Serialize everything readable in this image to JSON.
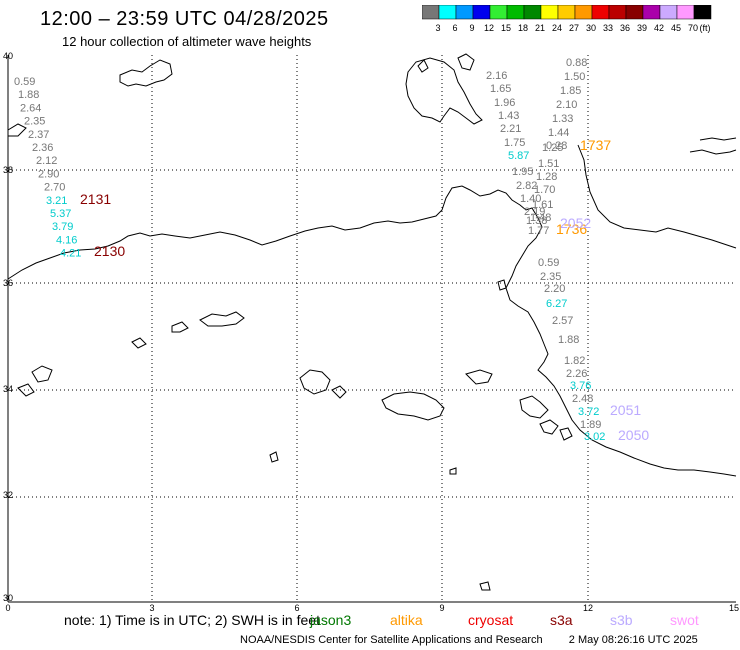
{
  "header": {
    "title": "12:00 – 23:59 UTC 04/28/2025",
    "subtitle": "12 hour collection of altimeter wave heights"
  },
  "legend": {
    "unit": "(ft)",
    "bins": [
      {
        "label": "3",
        "color": "#777777"
      },
      {
        "label": "6",
        "color": "#00ffff"
      },
      {
        "label": "9",
        "color": "#0099ff"
      },
      {
        "label": "12",
        "color": "#0000ee"
      },
      {
        "label": "15",
        "color": "#33ee33"
      },
      {
        "label": "18",
        "color": "#00bb00"
      },
      {
        "label": "21",
        "color": "#008800"
      },
      {
        "label": "24",
        "color": "#ffff00"
      },
      {
        "label": "27",
        "color": "#ffcc00"
      },
      {
        "label": "30",
        "color": "#ff9900"
      },
      {
        "label": "33",
        "color": "#ee0000"
      },
      {
        "label": "36",
        "color": "#bb0000"
      },
      {
        "label": "39",
        "color": "#880000"
      },
      {
        "label": "42",
        "color": "#aa00aa"
      },
      {
        "label": "45",
        "color": "#ccaaff"
      },
      {
        "label": "70",
        "color": "#ff99ff"
      },
      {
        "label": "",
        "color": "#000000"
      }
    ]
  },
  "axes": {
    "y_labels": [
      "40",
      "38",
      "36",
      "34",
      "32",
      "30"
    ],
    "x_labels": [
      "0",
      "3",
      "6",
      "9",
      "12",
      "15"
    ]
  },
  "colors": {
    "gray": "#777777",
    "cyan": "#00cccc",
    "orange": "#ff9900",
    "darkred": "#880000",
    "lavender": "#bbaaff",
    "coast": "#000000",
    "grid": "#000000"
  },
  "track_a": [
    "0.59",
    "1.88",
    "2.64",
    "2.35",
    "2.37",
    "2.36",
    "2.12",
    "2.90",
    "2.70",
    "3.21",
    "5.37",
    "3.79",
    "4.16",
    "4.21"
  ],
  "track_a_colors": [
    "gray",
    "gray",
    "gray",
    "gray",
    "gray",
    "gray",
    "gray",
    "gray",
    "gray",
    "cyan",
    "cyan",
    "cyan",
    "cyan",
    "cyan"
  ],
  "track_b": [
    "2.16",
    "1.65",
    "1.96",
    "1.43",
    "2.21",
    "1.75",
    "5.87",
    "1.95",
    "2.82",
    "1.40",
    "2.19",
    "1.38",
    "1.77"
  ],
  "track_b_colors": [
    "gray",
    "gray",
    "gray",
    "gray",
    "gray",
    "gray",
    "cyan",
    "gray",
    "gray",
    "gray",
    "gray",
    "gray",
    "gray"
  ],
  "track_c": [
    "0.88",
    "1.50",
    "1.85",
    "2.10",
    "1.33",
    "1.44",
    "0.28",
    "1.25",
    "1.51",
    "1.28",
    "1.70",
    "1.61",
    "1.48"
  ],
  "track_d": [
    "0.59",
    "2.35",
    "2.20",
    "6.27",
    "2.57",
    "1.88",
    "1.82",
    "2.26",
    "3.76",
    "2.48",
    "3.72",
    "1.89",
    "3.02"
  ],
  "track_d_colors": [
    "gray",
    "gray",
    "gray",
    "cyan",
    "gray",
    "gray",
    "gray",
    "gray",
    "cyan",
    "gray",
    "cyan",
    "gray",
    "cyan"
  ],
  "pass_labels": [
    {
      "text": "2131",
      "color": "darkred"
    },
    {
      "text": "2130",
      "color": "darkred"
    },
    {
      "text": "1737",
      "color": "orange"
    },
    {
      "text": "1736",
      "color": "orange"
    },
    {
      "text": "2052",
      "color": "lavender"
    },
    {
      "text": "2051",
      "color": "lavender"
    },
    {
      "text": "2050",
      "color": "lavender"
    }
  ],
  "footer": {
    "note": "note:  1) Time is in UTC;  2) SWH is in feet",
    "satellites": [
      {
        "name": "jason3",
        "color": "#007700"
      },
      {
        "name": "altika",
        "color": "#ff9900"
      },
      {
        "name": "cryosat",
        "color": "#ee0000"
      },
      {
        "name": "s3a",
        "color": "#880000"
      },
      {
        "name": "s3b",
        "color": "#bbaaff"
      },
      {
        "name": "swot",
        "color": "#ff99ff"
      }
    ],
    "credit": "NOAA/NESDIS Center for Satellite Applications and Research",
    "timestamp": "2 May 08:26:16 UTC 2025"
  }
}
